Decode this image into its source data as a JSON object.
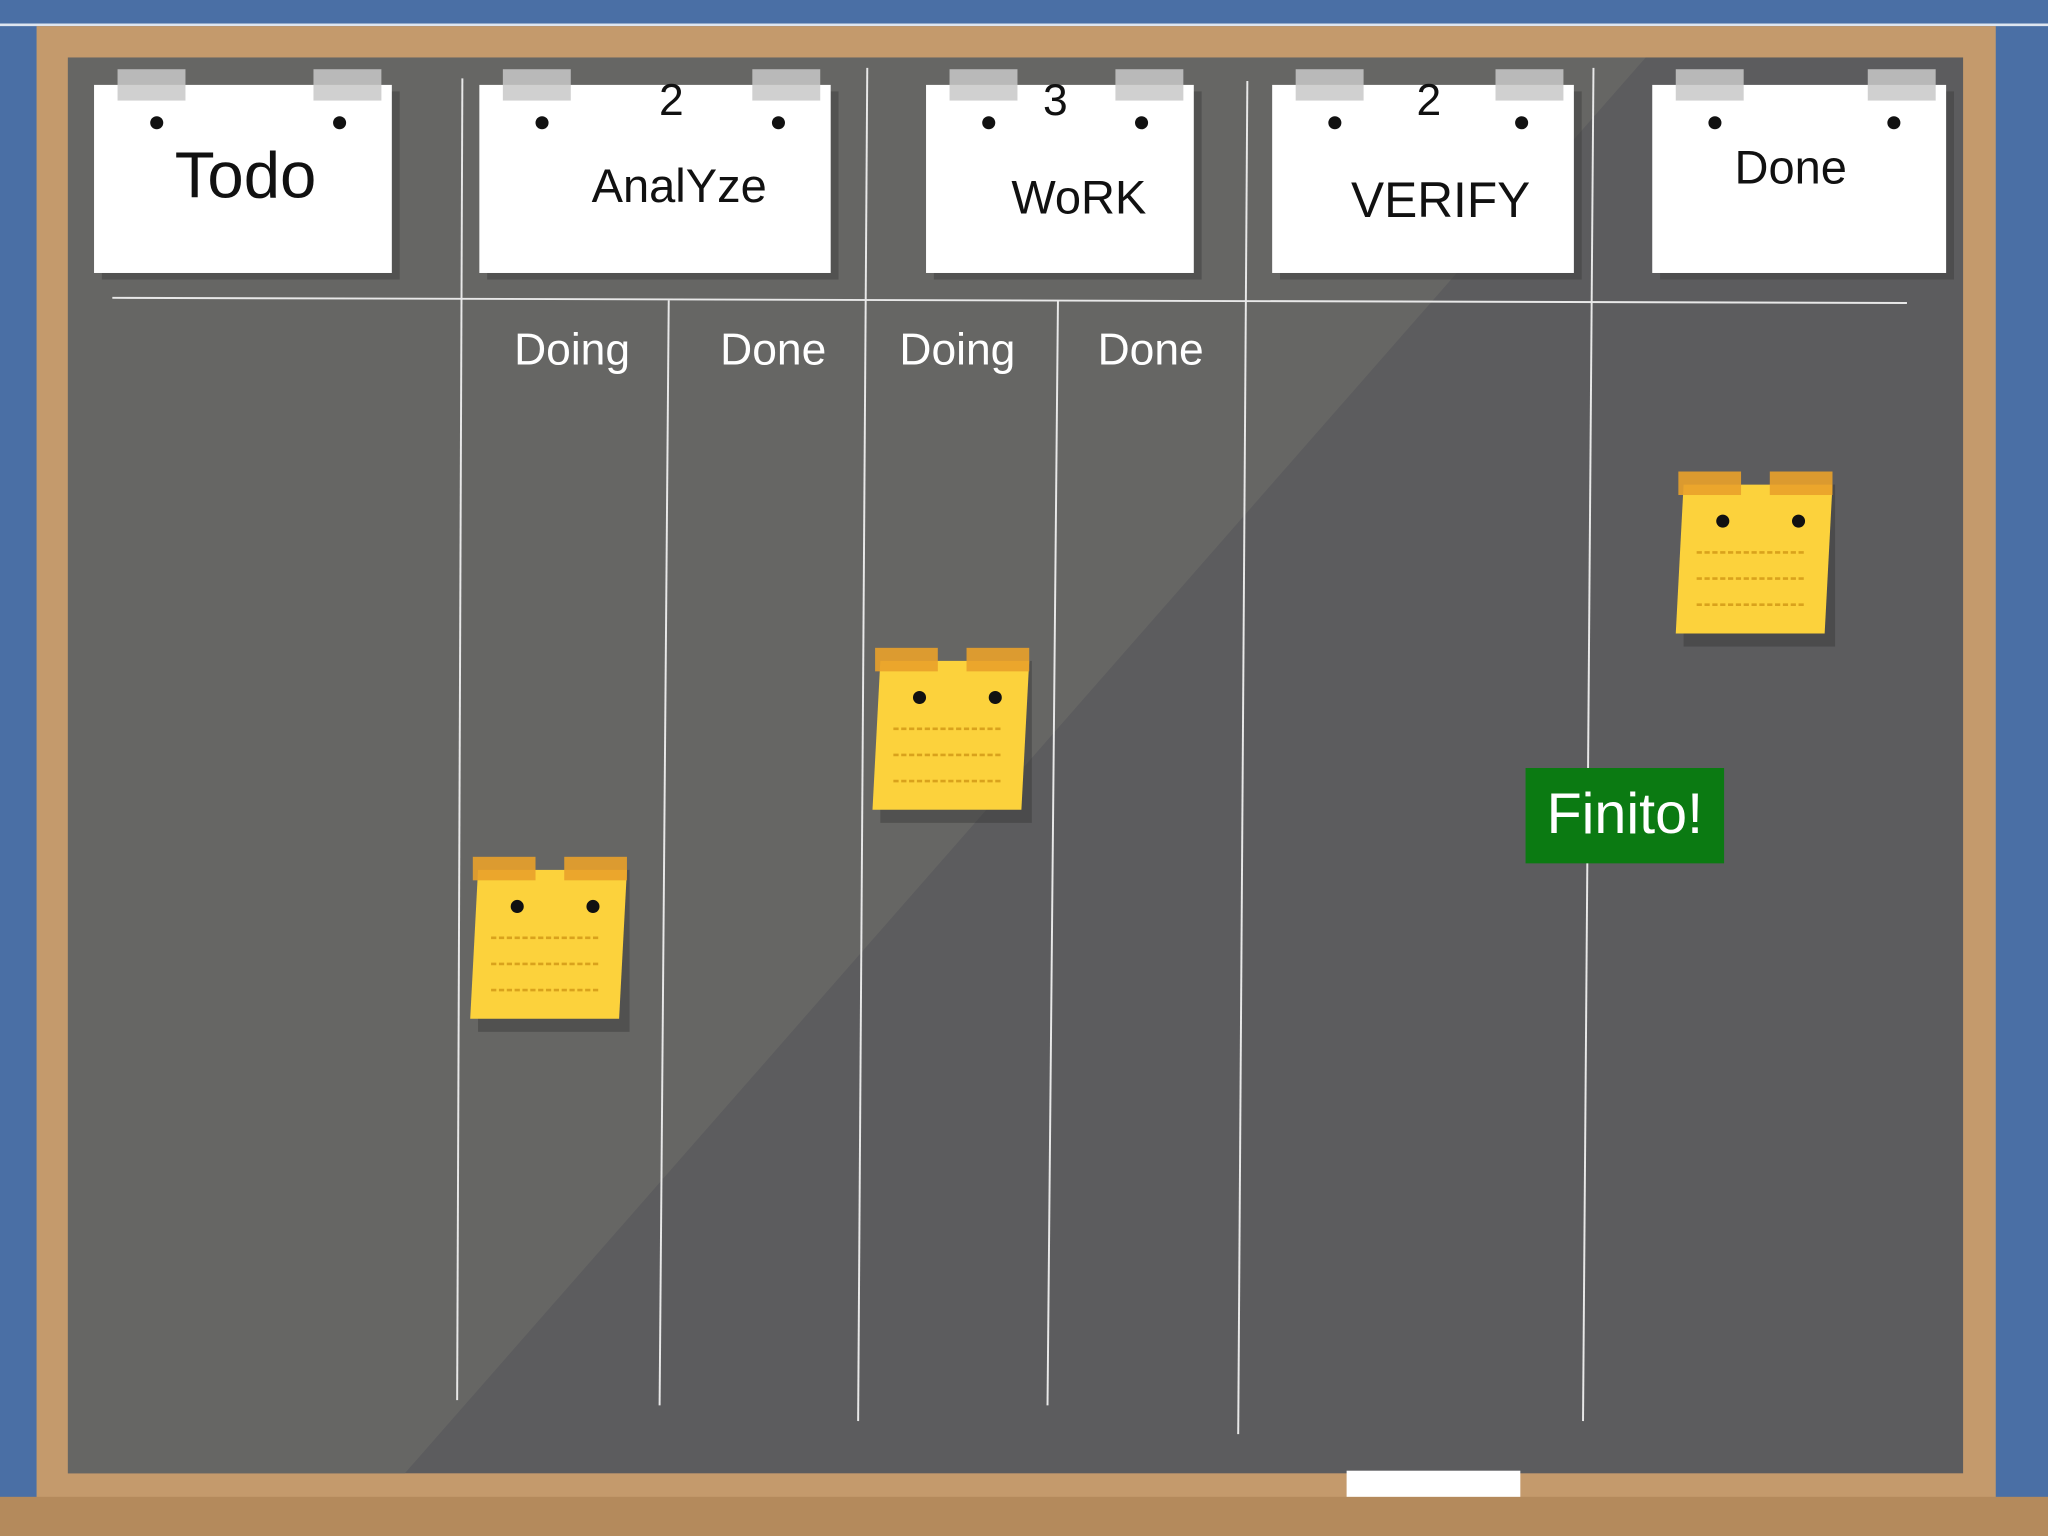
{
  "columns": [
    {
      "title": "Todo"
    },
    {
      "title": "AnalYze",
      "limit": 2,
      "subcolumns": [
        "Doing",
        "Done"
      ]
    },
    {
      "title": "WoRK",
      "limit": 3,
      "subcolumns": [
        "Doing",
        "Done"
      ]
    },
    {
      "title": "VERIFY",
      "limit": 2
    },
    {
      "title": "Done"
    }
  ],
  "badge": "Finito!"
}
